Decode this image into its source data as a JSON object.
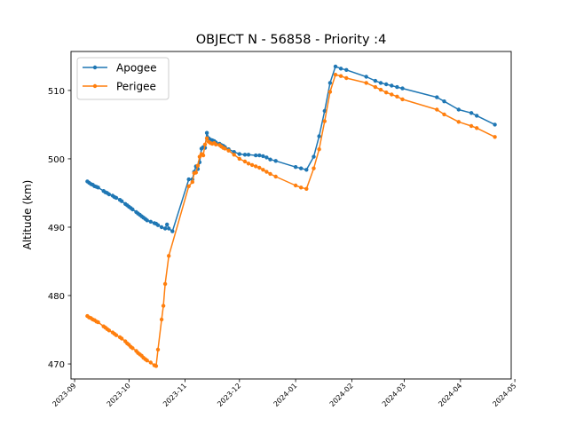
{
  "chart_data": {
    "type": "line",
    "title": "OBJECT N - 56858 - Priority :4",
    "xlabel": "",
    "ylabel": "Altitude (km)",
    "xlim": [
      "2023-08-30",
      "2024-04-29"
    ],
    "ylim": [
      467.8,
      515.7
    ],
    "x_ticks": [
      "2023-09",
      "2023-10",
      "2023-11",
      "2023-12",
      "2024-01",
      "2024-02",
      "2024-03",
      "2024-04",
      "2024-05"
    ],
    "y_ticks": [
      470,
      480,
      490,
      500,
      510
    ],
    "grid": false,
    "legend": "top-left",
    "series": [
      {
        "name": "Apogee",
        "color": "#1f77b4",
        "points": [
          [
            "2023-09-08",
            496.7
          ],
          [
            "2023-09-09",
            496.5
          ],
          [
            "2023-09-10",
            496.3
          ],
          [
            "2023-09-11",
            496.2
          ],
          [
            "2023-09-12",
            496.0
          ],
          [
            "2023-09-13",
            495.9
          ],
          [
            "2023-09-14",
            495.8
          ],
          [
            "2023-09-17",
            495.3
          ],
          [
            "2023-09-18",
            495.1
          ],
          [
            "2023-09-19",
            495.0
          ],
          [
            "2023-09-20",
            494.8
          ],
          [
            "2023-09-22",
            494.6
          ],
          [
            "2023-09-23",
            494.4
          ],
          [
            "2023-09-24",
            494.3
          ],
          [
            "2023-09-26",
            494.0
          ],
          [
            "2023-09-27",
            493.8
          ],
          [
            "2023-09-29",
            493.4
          ],
          [
            "2023-09-30",
            493.2
          ],
          [
            "2023-10-01",
            493.0
          ],
          [
            "2023-10-02",
            492.8
          ],
          [
            "2023-10-03",
            492.6
          ],
          [
            "2023-10-05",
            492.2
          ],
          [
            "2023-10-06",
            492.0
          ],
          [
            "2023-10-07",
            491.8
          ],
          [
            "2023-10-08",
            491.6
          ],
          [
            "2023-10-09",
            491.4
          ],
          [
            "2023-10-10",
            491.2
          ],
          [
            "2023-10-11",
            491.0
          ],
          [
            "2023-10-13",
            490.8
          ],
          [
            "2023-10-15",
            490.6
          ],
          [
            "2023-10-16",
            490.5
          ],
          [
            "2023-10-17",
            490.3
          ],
          [
            "2023-10-19",
            490.0
          ],
          [
            "2023-10-21",
            489.8
          ],
          [
            "2023-10-22",
            490.4
          ],
          [
            "2023-10-23",
            489.8
          ],
          [
            "2023-10-25",
            489.4
          ],
          [
            "2023-11-03",
            497.0
          ],
          [
            "2023-11-05",
            497.0
          ],
          [
            "2023-11-06",
            498.1
          ],
          [
            "2023-11-07",
            498.9
          ],
          [
            "2023-11-08",
            498.5
          ],
          [
            "2023-11-09",
            499.5
          ],
          [
            "2023-11-10",
            501.5
          ],
          [
            "2023-11-11",
            501.7
          ],
          [
            "2023-11-12",
            501.6
          ],
          [
            "2023-11-13",
            503.8
          ],
          [
            "2023-11-14",
            503.0
          ],
          [
            "2023-11-15",
            502.8
          ],
          [
            "2023-11-16",
            502.7
          ],
          [
            "2023-11-17",
            502.6
          ],
          [
            "2023-11-18",
            502.4
          ],
          [
            "2023-11-20",
            502.2
          ],
          [
            "2023-11-21",
            502.0
          ],
          [
            "2023-11-22",
            501.9
          ],
          [
            "2023-11-23",
            501.7
          ],
          [
            "2023-11-25",
            501.4
          ],
          [
            "2023-11-28",
            501.0
          ],
          [
            "2023-12-01",
            500.7
          ],
          [
            "2023-12-04",
            500.6
          ],
          [
            "2023-12-06",
            500.6
          ],
          [
            "2023-12-10",
            500.5
          ],
          [
            "2023-12-12",
            500.5
          ],
          [
            "2023-12-14",
            500.4
          ],
          [
            "2023-12-16",
            500.2
          ],
          [
            "2023-12-18",
            499.9
          ],
          [
            "2023-12-21",
            499.7
          ],
          [
            "2024-01-01",
            498.8
          ],
          [
            "2024-01-04",
            498.6
          ],
          [
            "2024-01-07",
            498.4
          ],
          [
            "2024-01-11",
            500.3
          ],
          [
            "2024-01-14",
            503.3
          ],
          [
            "2024-01-17",
            507.0
          ],
          [
            "2024-01-20",
            511.1
          ],
          [
            "2024-01-23",
            513.5
          ],
          [
            "2024-01-26",
            513.2
          ],
          [
            "2024-01-29",
            513.0
          ],
          [
            "2024-02-09",
            512.0
          ],
          [
            "2024-02-14",
            511.4
          ],
          [
            "2024-02-17",
            511.1
          ],
          [
            "2024-02-20",
            510.9
          ],
          [
            "2024-02-23",
            510.7
          ],
          [
            "2024-02-26",
            510.5
          ],
          [
            "2024-02-29",
            510.3
          ],
          [
            "2024-03-19",
            509.0
          ],
          [
            "2024-03-23",
            508.4
          ],
          [
            "2024-03-31",
            507.2
          ],
          [
            "2024-04-07",
            506.7
          ],
          [
            "2024-04-10",
            506.3
          ],
          [
            "2024-04-20",
            505.0
          ]
        ]
      },
      {
        "name": "Perigee",
        "color": "#ff7f0e",
        "points": [
          [
            "2023-09-08",
            477.0
          ],
          [
            "2023-09-09",
            476.8
          ],
          [
            "2023-09-10",
            476.7
          ],
          [
            "2023-09-11",
            476.5
          ],
          [
            "2023-09-12",
            476.4
          ],
          [
            "2023-09-13",
            476.2
          ],
          [
            "2023-09-14",
            476.1
          ],
          [
            "2023-09-17",
            475.5
          ],
          [
            "2023-09-18",
            475.3
          ],
          [
            "2023-09-19",
            475.1
          ],
          [
            "2023-09-20",
            474.9
          ],
          [
            "2023-09-22",
            474.6
          ],
          [
            "2023-09-23",
            474.4
          ],
          [
            "2023-09-24",
            474.2
          ],
          [
            "2023-09-26",
            473.9
          ],
          [
            "2023-09-27",
            473.7
          ],
          [
            "2023-09-29",
            473.3
          ],
          [
            "2023-09-30",
            473.0
          ],
          [
            "2023-10-01",
            472.8
          ],
          [
            "2023-10-02",
            472.5
          ],
          [
            "2023-10-03",
            472.3
          ],
          [
            "2023-10-05",
            471.9
          ],
          [
            "2023-10-06",
            471.6
          ],
          [
            "2023-10-07",
            471.4
          ],
          [
            "2023-10-08",
            471.2
          ],
          [
            "2023-10-09",
            470.9
          ],
          [
            "2023-10-10",
            470.7
          ],
          [
            "2023-10-11",
            470.5
          ],
          [
            "2023-10-13",
            470.2
          ],
          [
            "2023-10-15",
            469.8
          ],
          [
            "2023-10-16",
            469.7
          ],
          [
            "2023-10-17",
            472.1
          ],
          [
            "2023-10-19",
            476.5
          ],
          [
            "2023-10-20",
            478.5
          ],
          [
            "2023-10-21",
            481.7
          ],
          [
            "2023-10-23",
            485.8
          ],
          [
            "2023-11-03",
            496.0
          ],
          [
            "2023-11-05",
            496.6
          ],
          [
            "2023-11-06",
            497.9
          ],
          [
            "2023-11-07",
            498.0
          ],
          [
            "2023-11-08",
            499.0
          ],
          [
            "2023-11-09",
            500.3
          ],
          [
            "2023-11-10",
            500.7
          ],
          [
            "2023-11-11",
            500.5
          ],
          [
            "2023-11-12",
            502.1
          ],
          [
            "2023-11-13",
            503.0
          ],
          [
            "2023-11-14",
            502.5
          ],
          [
            "2023-11-15",
            502.3
          ],
          [
            "2023-11-16",
            502.2
          ],
          [
            "2023-11-17",
            502.3
          ],
          [
            "2023-11-18",
            502.1
          ],
          [
            "2023-11-20",
            502.0
          ],
          [
            "2023-11-21",
            501.8
          ],
          [
            "2023-11-22",
            501.6
          ],
          [
            "2023-11-23",
            501.5
          ],
          [
            "2023-11-25",
            501.2
          ],
          [
            "2023-11-28",
            500.6
          ],
          [
            "2023-12-01",
            500.0
          ],
          [
            "2023-12-04",
            499.6
          ],
          [
            "2023-12-06",
            499.3
          ],
          [
            "2023-12-08",
            499.1
          ],
          [
            "2023-12-10",
            498.9
          ],
          [
            "2023-12-12",
            498.7
          ],
          [
            "2023-12-14",
            498.4
          ],
          [
            "2023-12-16",
            498.1
          ],
          [
            "2023-12-18",
            497.8
          ],
          [
            "2023-12-21",
            497.4
          ],
          [
            "2024-01-01",
            496.1
          ],
          [
            "2024-01-04",
            495.8
          ],
          [
            "2024-01-07",
            495.6
          ],
          [
            "2024-01-11",
            498.6
          ],
          [
            "2024-01-14",
            501.4
          ],
          [
            "2024-01-17",
            505.5
          ],
          [
            "2024-01-20",
            509.8
          ],
          [
            "2024-01-23",
            512.3
          ],
          [
            "2024-01-26",
            512.1
          ],
          [
            "2024-01-29",
            511.8
          ],
          [
            "2024-02-09",
            511.1
          ],
          [
            "2024-02-14",
            510.5
          ],
          [
            "2024-02-17",
            510.1
          ],
          [
            "2024-02-20",
            509.7
          ],
          [
            "2024-02-23",
            509.4
          ],
          [
            "2024-02-26",
            509.1
          ],
          [
            "2024-02-29",
            508.7
          ],
          [
            "2024-03-19",
            507.2
          ],
          [
            "2024-03-23",
            506.5
          ],
          [
            "2024-03-31",
            505.4
          ],
          [
            "2024-04-07",
            504.8
          ],
          [
            "2024-04-10",
            504.5
          ],
          [
            "2024-04-20",
            503.2
          ]
        ]
      }
    ]
  }
}
